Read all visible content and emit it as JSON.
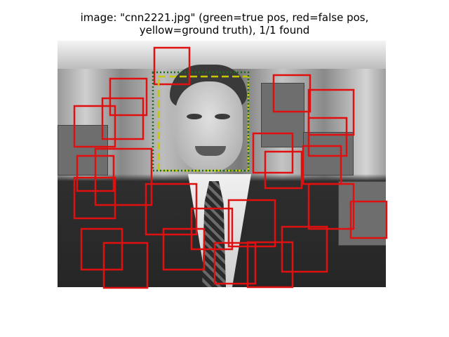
{
  "title": {
    "line1": "image: \"cnn2221.jpg\" (green=true pos, red=false pos,",
    "line2": "yellow=ground truth), 1/1 found"
  },
  "colors": {
    "true_positive": "#1a6b1a",
    "false_positive": "#e01010",
    "ground_truth": "#c8c800"
  },
  "image": {
    "icon": "photo-of-man-in-suit-facing-camera"
  }
}
